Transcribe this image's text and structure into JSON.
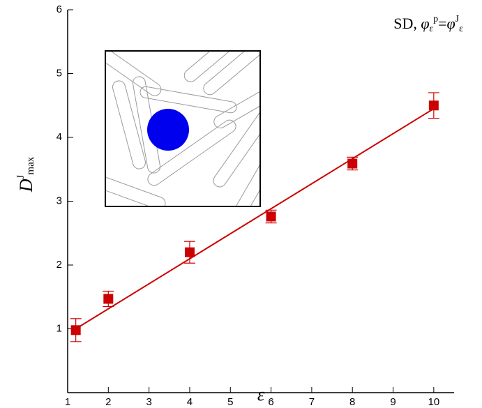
{
  "chart_data": {
    "type": "scatter",
    "annotation": [
      "SD, ",
      "φ",
      "ε",
      "p",
      "=",
      "φ",
      "J",
      "ε"
    ],
    "x_label": "ε",
    "y_label": [
      "D",
      "J",
      "max"
    ],
    "xlim": [
      1,
      10.5
    ],
    "xticks": [
      1,
      2,
      3,
      4,
      5,
      6,
      7,
      8,
      9,
      10
    ],
    "ylim": [
      0,
      6
    ],
    "yticks": [
      1,
      2,
      3,
      4,
      5,
      6
    ],
    "series": [
      {
        "color": "#cc0000",
        "x": [
          1.2,
          2,
          4,
          6,
          8,
          10
        ],
        "values": [
          0.98,
          1.47,
          2.2,
          2.76,
          3.59,
          4.5
        ],
        "errors": [
          0.18,
          0.12,
          0.17,
          0.1,
          0.1,
          0.2
        ]
      }
    ],
    "fit_line": {
      "color": "#cc0000",
      "x": [
        1.2,
        10
      ],
      "values": [
        1.0,
        4.45
      ]
    }
  }
}
